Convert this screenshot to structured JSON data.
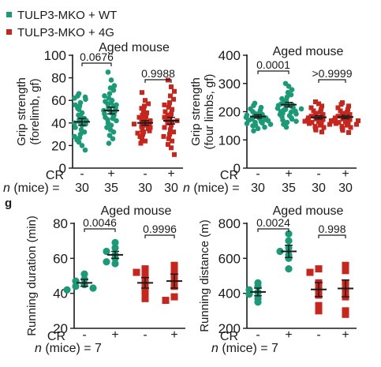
{
  "legend": [
    {
      "label": "TULP3-MKO + WT",
      "color": "#1a9a76"
    },
    {
      "label": "TULP3-MKO + 4G",
      "color": "#c8251d"
    }
  ],
  "panel_label": "g",
  "cr_row_label": "CR",
  "n_row_label_italic": "n",
  "n_row_label_rest": " (mice) = ",
  "chart_data": [
    {
      "type": "scatter",
      "title": "Aged mouse",
      "ylabel_lines": [
        "Grip strength",
        "(forelimb, gf)"
      ],
      "ylim": [
        0,
        100
      ],
      "yticks": [
        "0",
        "20",
        "40",
        "60",
        "80",
        "100"
      ],
      "cr": [
        "-",
        "+",
        "-",
        "+"
      ],
      "n_values": [
        "30",
        "35",
        "30",
        "30"
      ],
      "pvalues": [
        {
          "label": "0.0676",
          "groups": [
            0,
            1
          ]
        },
        {
          "label": "0.9988",
          "groups": [
            2,
            3
          ]
        }
      ],
      "marker_size": "small",
      "groups": [
        {
          "series": "TULP3-MKO + WT",
          "cr": "-",
          "mean": 41,
          "sem": 3,
          "values": [
            66,
            64,
            63,
            62,
            61,
            58,
            56,
            55,
            53,
            52,
            49,
            47,
            45,
            44,
            43,
            42,
            41,
            40,
            39,
            38,
            36,
            34,
            32,
            30,
            28,
            27,
            25,
            23,
            20,
            16
          ]
        },
        {
          "series": "TULP3-MKO + WT",
          "cr": "+",
          "mean": 51,
          "sem": 3,
          "values": [
            85,
            78,
            73,
            71,
            69,
            66,
            64,
            62,
            60,
            59,
            58,
            57,
            56,
            55,
            54,
            53,
            52,
            51,
            50,
            49,
            48,
            47,
            46,
            45,
            44,
            43,
            42,
            40,
            38,
            36,
            34,
            32,
            29,
            26,
            22
          ]
        },
        {
          "series": "TULP3-MKO + 4G",
          "cr": "-",
          "mean": 40,
          "sem": 2,
          "values": [
            67,
            60,
            57,
            55,
            53,
            51,
            49,
            47,
            46,
            45,
            44,
            43,
            42,
            41,
            40,
            40,
            39,
            38,
            37,
            36,
            35,
            34,
            33,
            32,
            31,
            30,
            28,
            26,
            24,
            22
          ]
        },
        {
          "series": "TULP3-MKO + 4G",
          "cr": "+",
          "mean": 42,
          "sem": 3,
          "values": [
            78,
            72,
            68,
            64,
            61,
            58,
            56,
            54,
            52,
            50,
            48,
            47,
            46,
            45,
            44,
            43,
            42,
            41,
            40,
            38,
            36,
            34,
            32,
            30,
            28,
            26,
            24,
            21,
            18,
            12
          ]
        }
      ]
    },
    {
      "type": "scatter",
      "title": "Aged mouse",
      "ylabel_lines": [
        "Grip strength",
        "(four limbs, gf)"
      ],
      "ylim": [
        0,
        400
      ],
      "yticks": [
        "0",
        "100",
        "200",
        "300",
        "400"
      ],
      "cr": [
        "-",
        "+",
        "-",
        "+"
      ],
      "n_values": [
        "30",
        "35",
        "30",
        "30"
      ],
      "pvalues": [
        {
          "label": "0.0001",
          "groups": [
            0,
            1
          ]
        },
        {
          "label": ">0.9999",
          "groups": [
            2,
            3
          ]
        }
      ],
      "marker_size": "small",
      "groups": [
        {
          "series": "TULP3-MKO + WT",
          "cr": "-",
          "mean": 183,
          "sem": 6,
          "values": [
            230,
            222,
            215,
            210,
            205,
            200,
            196,
            193,
            190,
            188,
            186,
            184,
            182,
            180,
            178,
            176,
            174,
            172,
            170,
            168,
            165,
            162,
            160,
            158,
            155,
            152,
            150,
            145,
            140,
            132
          ]
        },
        {
          "series": "TULP3-MKO + WT",
          "cr": "+",
          "mean": 225,
          "sem": 8,
          "values": [
            300,
            290,
            278,
            268,
            260,
            252,
            246,
            240,
            236,
            232,
            228,
            225,
            222,
            220,
            218,
            215,
            212,
            210,
            208,
            205,
            202,
            200,
            198,
            195,
            192,
            190,
            186,
            182,
            178,
            174,
            170,
            166,
            162,
            155,
            145
          ]
        },
        {
          "series": "TULP3-MKO + 4G",
          "cr": "-",
          "mean": 180,
          "sem": 6,
          "values": [
            235,
            228,
            220,
            214,
            208,
            203,
            198,
            194,
            190,
            187,
            184,
            181,
            178,
            176,
            174,
            172,
            170,
            168,
            166,
            164,
            162,
            160,
            158,
            155,
            152,
            148,
            144,
            140,
            135,
            128
          ]
        },
        {
          "series": "TULP3-MKO + 4G",
          "cr": "+",
          "mean": 181,
          "sem": 6,
          "values": [
            232,
            226,
            220,
            214,
            208,
            203,
            198,
            194,
            190,
            187,
            184,
            181,
            178,
            176,
            174,
            172,
            170,
            168,
            166,
            164,
            162,
            160,
            158,
            155,
            152,
            148,
            144,
            140,
            134,
            126
          ]
        }
      ]
    },
    {
      "type": "scatter",
      "title": "Aged mouse",
      "ylabel_lines": [
        "Running duration (min)"
      ],
      "ylim": [
        20,
        80
      ],
      "yticks": [
        "20",
        "40",
        "60",
        "80"
      ],
      "cr": [
        "-",
        "+",
        "-",
        "+"
      ],
      "n_single": "7",
      "pvalues": [
        {
          "label": "0.0046",
          "groups": [
            0,
            1
          ]
        },
        {
          "label": "0.9996",
          "groups": [
            2,
            3
          ]
        }
      ],
      "marker_size": "large",
      "groups": [
        {
          "series": "TULP3-MKO + WT",
          "cr": "-",
          "mean": 46,
          "sem": 2,
          "values": [
            51,
            48,
            47,
            45,
            44,
            43,
            42
          ]
        },
        {
          "series": "TULP3-MKO + WT",
          "cr": "+",
          "mean": 62,
          "sem": 2,
          "values": [
            69,
            66,
            64,
            62,
            60,
            58,
            57
          ]
        },
        {
          "series": "TULP3-MKO + 4G",
          "cr": "-",
          "mean": 46,
          "sem": 3,
          "values": [
            54,
            52,
            50,
            46,
            43,
            40,
            37
          ]
        },
        {
          "series": "TULP3-MKO + 4G",
          "cr": "+",
          "mean": 47,
          "sem": 4,
          "values": [
            56,
            53,
            50,
            47,
            44,
            38,
            36
          ]
        }
      ]
    },
    {
      "type": "scatter",
      "title": "Aged mouse",
      "ylabel_lines": [
        "Running distance (m)"
      ],
      "ylim": [
        200,
        800
      ],
      "yticks": [
        "200",
        "400",
        "600",
        "800"
      ],
      "cr": [
        "-",
        "+",
        "-",
        "+"
      ],
      "n_single": "7",
      "pvalues": [
        {
          "label": "0.0024",
          "groups": [
            0,
            1
          ]
        },
        {
          "label": "0.998",
          "groups": [
            2,
            3
          ]
        }
      ],
      "marker_size": "large",
      "groups": [
        {
          "series": "TULP3-MKO + WT",
          "cr": "-",
          "mean": 408,
          "sem": 22,
          "values": [
            460,
            440,
            420,
            405,
            395,
            370,
            350
          ]
        },
        {
          "series": "TULP3-MKO + WT",
          "cr": "+",
          "mean": 640,
          "sem": 35,
          "values": [
            740,
            700,
            660,
            640,
            620,
            600,
            540
          ]
        },
        {
          "series": "TULP3-MKO + 4G",
          "cr": "-",
          "mean": 422,
          "sem": 40,
          "values": [
            540,
            520,
            460,
            420,
            390,
            330,
            300
          ]
        },
        {
          "series": "TULP3-MKO + 4G",
          "cr": "+",
          "mean": 428,
          "sem": 48,
          "values": [
            560,
            530,
            460,
            420,
            380,
            300,
            280
          ]
        }
      ]
    }
  ]
}
